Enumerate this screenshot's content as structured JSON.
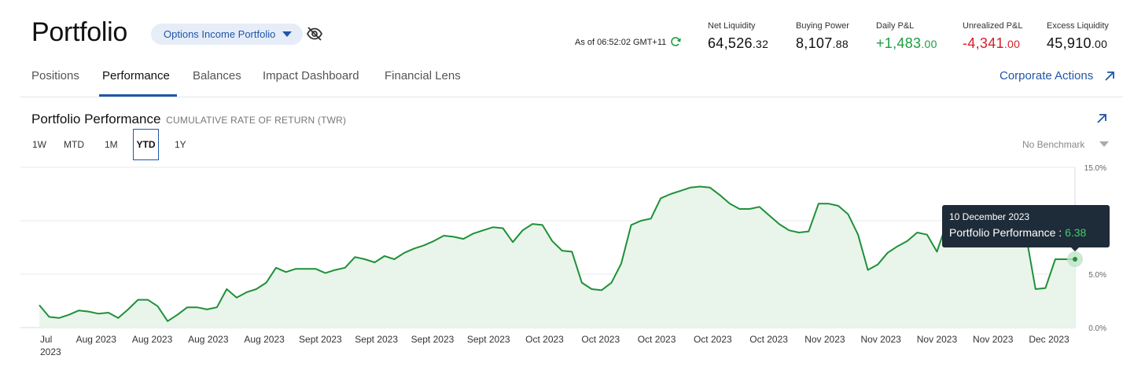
{
  "header": {
    "title": "Portfolio",
    "portfolio_selector": "Options Income Portfolio",
    "as_of": "As of 06:52:02 GMT+11"
  },
  "metrics": [
    {
      "label": "Net Liquidity",
      "int": "64,526",
      "frac": ".32",
      "tone": "neutral"
    },
    {
      "label": "Buying Power",
      "int": "8,107",
      "frac": ".88",
      "tone": "neutral"
    },
    {
      "label": "Daily P&L",
      "int": "+1,483",
      "frac": ".00",
      "tone": "positive"
    },
    {
      "label": "Unrealized P&L",
      "int": "-4,341",
      "frac": ".00",
      "tone": "negative"
    },
    {
      "label": "Excess Liquidity",
      "int": "45,910",
      "frac": ".00",
      "tone": "neutral"
    }
  ],
  "tabs": [
    {
      "label": "Positions",
      "active": false
    },
    {
      "label": "Performance",
      "active": true
    },
    {
      "label": "Balances",
      "active": false
    },
    {
      "label": "Impact Dashboard",
      "active": false
    },
    {
      "label": "Financial Lens",
      "active": false
    }
  ],
  "corporate_actions": "Corporate Actions",
  "performance": {
    "title": "Portfolio Performance",
    "subtitle": "CUMULATIVE RATE OF RETURN (TWR)",
    "ranges": [
      "1W",
      "MTD",
      "1M",
      "YTD",
      "1Y"
    ],
    "active_range": "YTD",
    "benchmark": "No Benchmark"
  },
  "tooltip": {
    "date": "10 December 2023",
    "label": "Portfolio Performance : ",
    "value": "6.38"
  },
  "colors": {
    "accent": "#1f56a8",
    "line": "#1e9138",
    "fill": "#e9f5ea",
    "positive": "#1a9e3f",
    "negative": "#d32029",
    "tooltip_bg": "#1e2b38"
  },
  "icons": {
    "portfolio_dropdown": "chevron-down-icon",
    "hide_values": "eye-slash-icon",
    "refresh": "refresh-icon",
    "corporate_actions": "arrow-up-right-icon",
    "expand_chart": "arrow-up-right-icon"
  },
  "chart_data": {
    "type": "area",
    "ylabel": "",
    "xlabel": "",
    "ylim": [
      0,
      15
    ],
    "y_ticks": [
      "0.0%",
      "5.0%",
      "15.0%"
    ],
    "y_tick_values": [
      0,
      5,
      15
    ],
    "y_grid_values": [
      0,
      5,
      10,
      15
    ],
    "x_tick_labels": [
      "Jul\n2023",
      "Aug 2023",
      "Aug 2023",
      "Aug 2023",
      "Aug 2023",
      "Sept 2023",
      "Sept 2023",
      "Sept 2023",
      "Sept 2023",
      "Oct 2023",
      "Oct 2023",
      "Oct 2023",
      "Oct 2023",
      "Oct 2023",
      "Nov 2023",
      "Nov 2023",
      "Nov 2023",
      "Nov 2023",
      "Dec 2023"
    ],
    "series": [
      {
        "values": [
          2.1,
          1.0,
          0.9,
          1.2,
          1.6,
          1.5,
          1.3,
          1.4,
          0.9,
          1.7,
          2.6,
          2.6,
          2.0,
          0.6,
          1.2,
          1.9,
          1.9,
          1.7,
          1.9,
          3.6,
          2.8,
          3.3,
          3.6,
          4.2,
          5.6,
          5.2,
          5.5,
          5.5,
          5.5,
          5.1,
          5.4,
          5.6,
          6.6,
          6.4,
          6.1,
          6.7,
          6.4,
          7.0,
          7.4,
          7.7,
          8.1,
          8.6,
          8.5,
          8.3,
          8.8,
          9.1,
          9.4,
          9.3,
          8.0,
          9.1,
          9.7,
          9.6,
          8.1,
          7.2,
          7.1,
          4.2,
          3.6,
          3.5,
          4.2,
          6.0,
          9.6,
          10.0,
          10.2,
          12.1,
          12.5,
          12.8,
          13.1,
          13.2,
          13.1,
          12.4,
          11.6,
          11.1,
          11.1,
          11.3,
          10.5,
          9.7,
          9.1,
          8.9,
          9.0,
          11.6,
          11.6,
          11.4,
          10.6,
          8.7,
          5.4,
          5.9,
          7.0,
          7.6,
          8.1,
          8.9,
          8.7,
          7.1,
          9.8,
          10.2,
          10.2,
          9.8,
          9.0,
          9.6,
          10.0,
          9.8,
          8.8,
          3.6,
          3.7,
          6.4,
          6.4,
          6.4
        ]
      }
    ]
  }
}
